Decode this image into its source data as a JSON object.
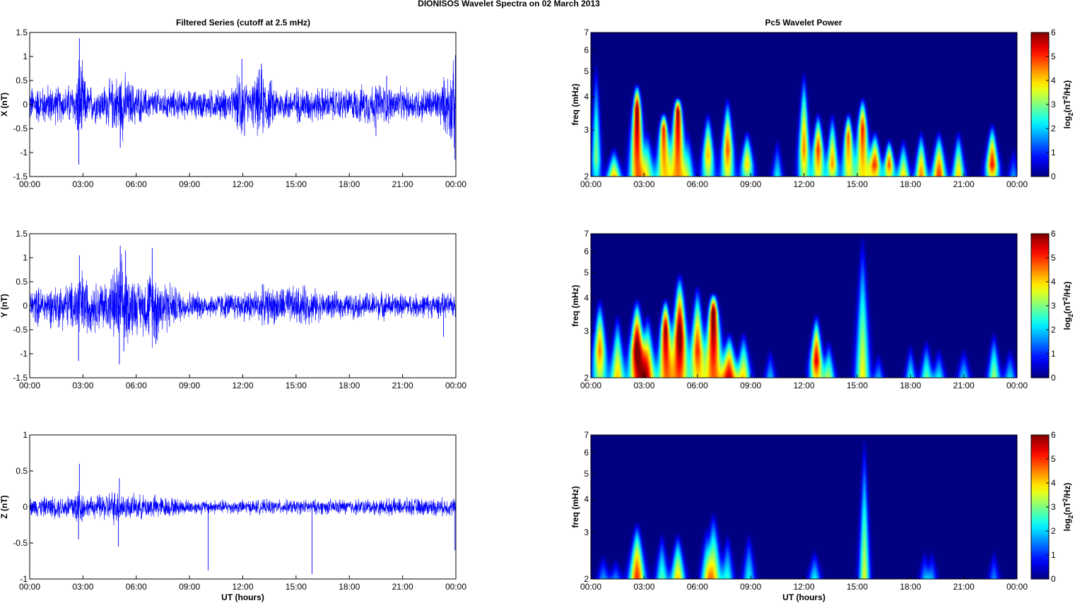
{
  "figure": {
    "title": "DIONISOS Wavelet Spectra on 02 March     2013",
    "left_title": "Filtered Series (cutoff at 2.5 mHz)",
    "right_title": "Pc5 Wavelet Power",
    "series_color": "#0000ff"
  },
  "chart_data": [
    {
      "type": "line",
      "component": "X",
      "ylabel": "X (nT)",
      "xlabel": "",
      "xlim": [
        0,
        24
      ],
      "ylim": [
        -1.5,
        1.5
      ],
      "x_ticks": [
        "00:00",
        "03:00",
        "06:00",
        "09:00",
        "12:00",
        "15:00",
        "18:00",
        "21:00",
        "00:00"
      ],
      "y_ticks": [
        {
          "v": 1.5,
          "l": "1.5"
        },
        {
          "v": 1,
          "l": "1"
        },
        {
          "v": 0.5,
          "l": "0.5"
        },
        {
          "v": 0,
          "l": "0"
        },
        {
          "v": -0.5,
          "l": "-0.5"
        },
        {
          "v": -1,
          "l": "-1"
        },
        {
          "v": -1.5,
          "l": "-1.5"
        }
      ],
      "envelope": [
        [
          0,
          0.45
        ],
        [
          1,
          0.5
        ],
        [
          2,
          0.45
        ],
        [
          2.6,
          0.6
        ],
        [
          2.8,
          1.3
        ],
        [
          3.2,
          0.5
        ],
        [
          4,
          0.45
        ],
        [
          4.8,
          0.7
        ],
        [
          5.2,
          0.9
        ],
        [
          5.6,
          0.6
        ],
        [
          6.5,
          0.4
        ],
        [
          9,
          0.35
        ],
        [
          11.5,
          0.4
        ],
        [
          11.9,
          0.95
        ],
        [
          12.3,
          0.4
        ],
        [
          13,
          0.9
        ],
        [
          14,
          0.4
        ],
        [
          15,
          0.45
        ],
        [
          18,
          0.4
        ],
        [
          19.5,
          0.55
        ],
        [
          21,
          0.4
        ],
        [
          23,
          0.45
        ],
        [
          24,
          1.15
        ]
      ],
      "spikes": [
        [
          2.8,
          1.38
        ],
        [
          2.77,
          -1.25
        ],
        [
          5.1,
          -0.9
        ],
        [
          11.95,
          0.95
        ],
        [
          12.1,
          -0.65
        ],
        [
          13.05,
          0.85
        ],
        [
          19.5,
          -0.65
        ],
        [
          20.1,
          0.6
        ],
        [
          23.95,
          -1.15
        ]
      ]
    },
    {
      "type": "line",
      "component": "Y",
      "ylabel": "Y (nT)",
      "xlabel": "",
      "xlim": [
        0,
        24
      ],
      "ylim": [
        -1.5,
        1.5
      ],
      "x_ticks": [
        "00:00",
        "03:00",
        "06:00",
        "09:00",
        "12:00",
        "15:00",
        "18:00",
        "21:00",
        "00:00"
      ],
      "y_ticks": [
        {
          "v": 1.5,
          "l": "1.5"
        },
        {
          "v": 1,
          "l": "1"
        },
        {
          "v": 0.5,
          "l": "0.5"
        },
        {
          "v": 0,
          "l": "0"
        },
        {
          "v": -0.5,
          "l": "-0.5"
        },
        {
          "v": -1,
          "l": "-1"
        },
        {
          "v": -1.5,
          "l": "-1.5"
        }
      ],
      "envelope": [
        [
          0,
          0.45
        ],
        [
          1,
          0.5
        ],
        [
          2.4,
          0.6
        ],
        [
          2.8,
          1.05
        ],
        [
          3.4,
          0.6
        ],
        [
          4.5,
          0.7
        ],
        [
          5.1,
          1.2
        ],
        [
          5.7,
          0.8
        ],
        [
          6.2,
          0.6
        ],
        [
          7,
          1.0
        ],
        [
          7.6,
          0.7
        ],
        [
          8.5,
          0.4
        ],
        [
          10,
          0.3
        ],
        [
          11.5,
          0.35
        ],
        [
          13,
          0.45
        ],
        [
          15.5,
          0.5
        ],
        [
          16.5,
          0.35
        ],
        [
          18,
          0.3
        ],
        [
          19.5,
          0.35
        ],
        [
          21,
          0.3
        ],
        [
          24,
          0.3
        ]
      ],
      "spikes": [
        [
          2.75,
          -1.15
        ],
        [
          2.8,
          1.05
        ],
        [
          5.05,
          -1.22
        ],
        [
          5.1,
          1.25
        ],
        [
          5.3,
          -0.95
        ],
        [
          5.4,
          1.15
        ],
        [
          6.9,
          1.2
        ],
        [
          7.1,
          -0.8
        ],
        [
          13.1,
          0.45
        ],
        [
          23.3,
          -0.65
        ]
      ]
    },
    {
      "type": "line",
      "component": "Z",
      "ylabel": "Z (nT)",
      "xlabel": "UT (hours)",
      "xlim": [
        0,
        24
      ],
      "ylim": [
        -1,
        1
      ],
      "x_ticks": [
        "00:00",
        "03:00",
        "06:00",
        "09:00",
        "12:00",
        "15:00",
        "18:00",
        "21:00",
        "00:00"
      ],
      "y_ticks": [
        {
          "v": 1,
          "l": "1"
        },
        {
          "v": 0.5,
          "l": "0.5"
        },
        {
          "v": 0,
          "l": "0"
        },
        {
          "v": -0.5,
          "l": "-0.5"
        },
        {
          "v": -1,
          "l": "-1"
        }
      ],
      "envelope": [
        [
          0,
          0.15
        ],
        [
          2,
          0.2
        ],
        [
          2.8,
          0.35
        ],
        [
          3.2,
          0.15
        ],
        [
          5,
          0.3
        ],
        [
          5.5,
          0.2
        ],
        [
          7,
          0.2
        ],
        [
          9,
          0.12
        ],
        [
          15,
          0.12
        ],
        [
          24,
          0.15
        ]
      ],
      "spikes": [
        [
          2.8,
          0.6
        ],
        [
          2.75,
          -0.45
        ],
        [
          5.0,
          -0.55
        ],
        [
          5.05,
          0.4
        ],
        [
          10.05,
          -0.88
        ],
        [
          15.9,
          -0.93
        ],
        [
          23.95,
          -0.6
        ]
      ]
    },
    {
      "type": "heatmap",
      "component": "X",
      "ylabel": "freq (mHz)",
      "xlabel": "",
      "xlim": [
        0,
        24
      ],
      "ylim": [
        2,
        7
      ],
      "y_scale": "log",
      "x_ticks": [
        "00:00",
        "03:00",
        "06:00",
        "09:00",
        "12:00",
        "15:00",
        "18:00",
        "21:00",
        "00:00"
      ],
      "y_ticks": [
        2,
        3,
        4,
        5,
        6,
        7
      ],
      "colorbar_label": "log2(nT2/Hz)",
      "colorbar_ticks": [
        0,
        1,
        2,
        3,
        4,
        5,
        6
      ],
      "clim": [
        0,
        6
      ],
      "blobs": [
        [
          0.3,
          3.0,
          5.5,
          2.3,
          0.3
        ],
        [
          1.3,
          6.0,
          2.6,
          1.6,
          0.4
        ],
        [
          2.6,
          6.3,
          4.5,
          3.5,
          0.45
        ],
        [
          3.2,
          2.8,
          3.0,
          2.0,
          0.4
        ],
        [
          4.1,
          5.2,
          3.5,
          3.0,
          0.45
        ],
        [
          4.9,
          6.0,
          4.0,
          3.5,
          0.5
        ],
        [
          5.5,
          2.8,
          3.0,
          1.6,
          0.35
        ],
        [
          6.6,
          4.2,
          3.5,
          2.4,
          0.4
        ],
        [
          7.7,
          4.8,
          4.0,
          2.5,
          0.4
        ],
        [
          8.8,
          4.0,
          3.0,
          2.2,
          0.4
        ],
        [
          10.5,
          3.0,
          2.8,
          1.6,
          0.3
        ],
        [
          12.0,
          4.5,
          5.0,
          2.5,
          0.35
        ],
        [
          12.8,
          5.0,
          3.5,
          2.5,
          0.4
        ],
        [
          13.6,
          4.4,
          3.5,
          2.2,
          0.35
        ],
        [
          14.5,
          4.8,
          3.5,
          2.8,
          0.4
        ],
        [
          15.3,
          5.2,
          4.0,
          3.0,
          0.45
        ],
        [
          16.0,
          4.8,
          3.0,
          2.2,
          0.4
        ],
        [
          16.8,
          4.8,
          2.8,
          2.2,
          0.35
        ],
        [
          17.6,
          4.5,
          2.8,
          1.8,
          0.35
        ],
        [
          18.6,
          4.5,
          3.0,
          2.0,
          0.35
        ],
        [
          19.6,
          5.0,
          3.0,
          2.0,
          0.4
        ],
        [
          20.7,
          4.0,
          3.0,
          2.0,
          0.35
        ],
        [
          22.6,
          5.2,
          3.2,
          2.2,
          0.4
        ],
        [
          23.8,
          3.5,
          2.6,
          1.2,
          0.3
        ]
      ]
    },
    {
      "type": "heatmap",
      "component": "Y",
      "ylabel": "freq (mHz)",
      "xlabel": "",
      "xlim": [
        0,
        24
      ],
      "ylim": [
        2,
        7
      ],
      "y_scale": "log",
      "x_ticks": [
        "00:00",
        "03:00",
        "06:00",
        "09:00",
        "12:00",
        "15:00",
        "18:00",
        "21:00",
        "00:00"
      ],
      "y_ticks": [
        2,
        3,
        4,
        5,
        6,
        7
      ],
      "colorbar_label": "log2(nT2/Hz)",
      "colorbar_ticks": [
        0,
        1,
        2,
        3,
        4,
        5,
        6
      ],
      "clim": [
        0,
        6
      ],
      "blobs": [
        [
          0.5,
          4.5,
          4.0,
          2.5,
          0.45
        ],
        [
          1.5,
          4.0,
          3.5,
          2.0,
          0.4
        ],
        [
          2.6,
          6.5,
          4.0,
          2.5,
          0.5
        ],
        [
          3.2,
          4.5,
          3.5,
          2.0,
          0.45
        ],
        [
          4.2,
          6.0,
          4.0,
          3.0,
          0.45
        ],
        [
          5.0,
          6.5,
          5.0,
          2.8,
          0.5
        ],
        [
          6.0,
          5.0,
          4.5,
          2.5,
          0.45
        ],
        [
          6.9,
          6.5,
          4.2,
          3.5,
          0.55
        ],
        [
          7.8,
          5.2,
          3.0,
          2.0,
          0.45
        ],
        [
          8.6,
          3.8,
          3.0,
          2.0,
          0.4
        ],
        [
          10.1,
          3.0,
          2.6,
          1.5,
          0.3
        ],
        [
          12.7,
          5.5,
          3.5,
          2.3,
          0.4
        ],
        [
          13.4,
          3.5,
          2.8,
          1.8,
          0.35
        ],
        [
          15.3,
          4.0,
          7.0,
          1.6,
          0.4
        ],
        [
          16.2,
          3.0,
          2.5,
          1.5,
          0.3
        ],
        [
          18.0,
          3.0,
          2.7,
          1.7,
          0.3
        ],
        [
          18.9,
          3.2,
          2.8,
          1.8,
          0.35
        ],
        [
          19.6,
          3.2,
          2.6,
          1.6,
          0.35
        ],
        [
          21.0,
          3.0,
          2.6,
          1.6,
          0.35
        ],
        [
          22.7,
          3.3,
          3.0,
          1.9,
          0.35
        ],
        [
          23.6,
          3.0,
          2.6,
          1.6,
          0.35
        ]
      ]
    },
    {
      "type": "heatmap",
      "component": "Z",
      "ylabel": "freq (mHz)",
      "xlabel": "UT (hours)",
      "xlim": [
        0,
        24
      ],
      "ylim": [
        2,
        7
      ],
      "y_scale": "log",
      "x_ticks": [
        "00:00",
        "03:00",
        "06:00",
        "09:00",
        "12:00",
        "15:00",
        "18:00",
        "21:00",
        "00:00"
      ],
      "y_ticks": [
        2,
        3,
        4,
        5,
        6,
        7
      ],
      "colorbar_label": "log2(nT2/Hz)",
      "colorbar_ticks": [
        0,
        1,
        2,
        3,
        4,
        5,
        6
      ],
      "clim": [
        0,
        6
      ],
      "blobs": [
        [
          0.7,
          2.5,
          2.5,
          1.6,
          0.35
        ],
        [
          1.4,
          2.5,
          2.4,
          1.6,
          0.35
        ],
        [
          2.6,
          5.0,
          3.3,
          2.0,
          0.45
        ],
        [
          4.0,
          3.0,
          3.0,
          1.8,
          0.35
        ],
        [
          4.9,
          4.2,
          3.0,
          1.9,
          0.4
        ],
        [
          6.5,
          2.3,
          3.2,
          1.8,
          0.35
        ],
        [
          6.9,
          3.8,
          3.6,
          2.0,
          0.45
        ],
        [
          7.7,
          2.6,
          3.0,
          1.8,
          0.35
        ],
        [
          8.9,
          2.5,
          3.0,
          1.8,
          0.35
        ],
        [
          12.6,
          3.2,
          2.6,
          1.6,
          0.35
        ],
        [
          15.4,
          4.0,
          7.0,
          1.4,
          0.3
        ],
        [
          18.8,
          2.3,
          2.6,
          1.6,
          0.3
        ],
        [
          19.2,
          2.2,
          2.6,
          1.6,
          0.3
        ],
        [
          22.7,
          2.2,
          2.6,
          1.6,
          0.3
        ]
      ]
    }
  ]
}
